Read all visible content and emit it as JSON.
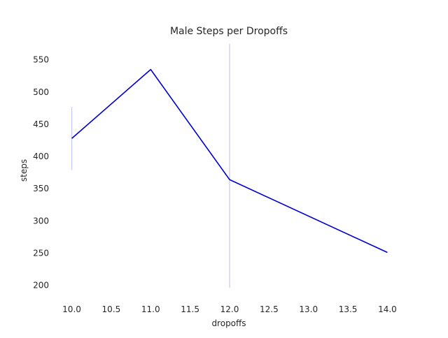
{
  "chart_data": {
    "type": "line",
    "title": "Male Steps per Dropoffs",
    "xlabel": "dropoffs",
    "ylabel": "steps",
    "xlim": [
      9.8,
      14.2
    ],
    "ylim": [
      180,
      580
    ],
    "xticks": [
      10.0,
      10.5,
      11.0,
      11.5,
      12.0,
      12.5,
      13.0,
      13.5,
      14.0
    ],
    "xtick_labels": [
      "10.0",
      "10.5",
      "11.0",
      "11.5",
      "12.0",
      "12.5",
      "13.0",
      "13.5",
      "14.0"
    ],
    "yticks": [
      200,
      250,
      300,
      350,
      400,
      450,
      500,
      550
    ],
    "ytick_labels": [
      "200",
      "250",
      "300",
      "350",
      "400",
      "450",
      "500",
      "550"
    ],
    "grid": false,
    "series": [
      {
        "x": [
          10,
          11,
          12,
          14
        ],
        "y": [
          428,
          535,
          364,
          251
        ],
        "color": "#0000d0"
      }
    ],
    "error_bars": [
      {
        "x": 10,
        "low": 379,
        "high": 477
      },
      {
        "x": 12,
        "low": 196,
        "high": 575
      }
    ],
    "error_bar_color": "#c8c8f4"
  }
}
